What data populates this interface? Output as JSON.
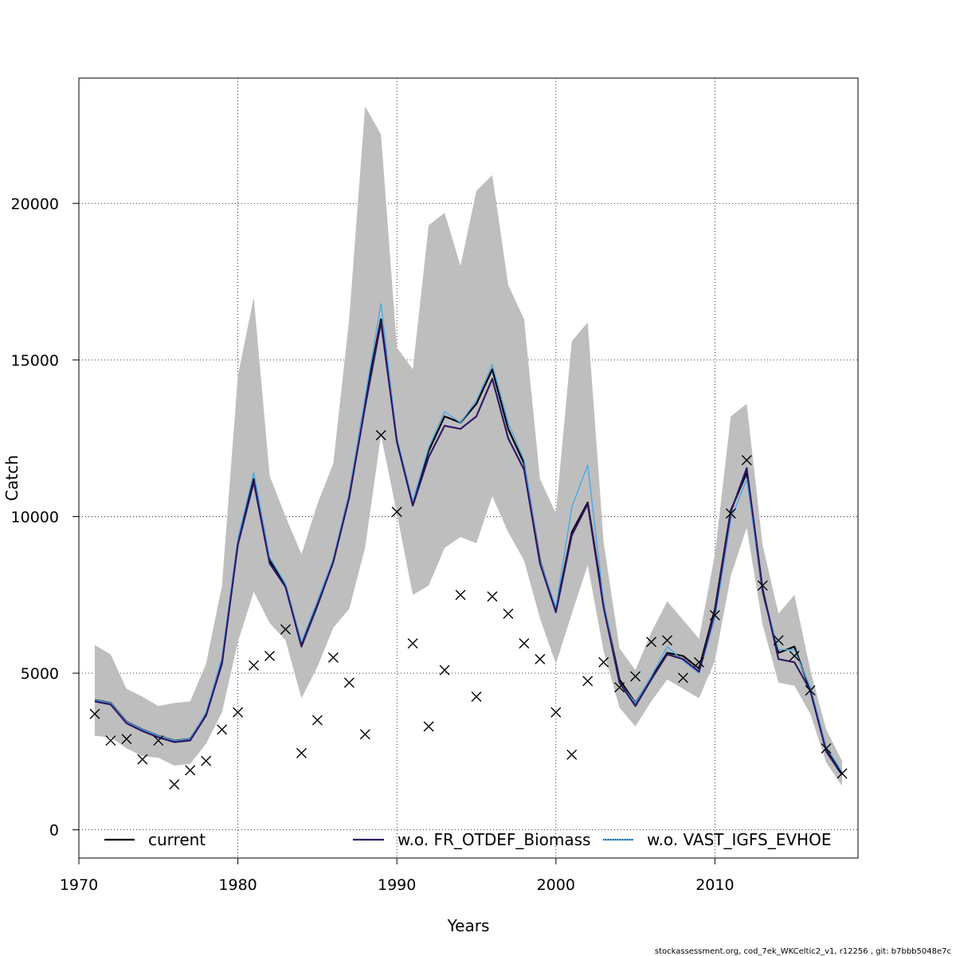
{
  "chart_data": {
    "type": "line",
    "xlabel": "Years",
    "ylabel": "Catch",
    "xlim": [
      1970,
      2019
    ],
    "ylim": [
      -900,
      24000
    ],
    "xticks": [
      1970,
      1980,
      1990,
      2000,
      2010
    ],
    "yticks": [
      0,
      5000,
      10000,
      15000,
      20000
    ],
    "grid": true,
    "legend_position": "bottom",
    "footer": "stockassessment.org, cod_7ek_WKCeltic2_v1, r12256 , git: b7bbb5048e7c",
    "x": [
      1971,
      1972,
      1973,
      1974,
      1975,
      1976,
      1977,
      1978,
      1979,
      1980,
      1981,
      1982,
      1983,
      1984,
      1985,
      1986,
      1987,
      1988,
      1989,
      1990,
      1991,
      1992,
      1993,
      1994,
      1995,
      1996,
      1997,
      1998,
      1999,
      2000,
      2001,
      2002,
      2003,
      2004,
      2005,
      2006,
      2007,
      2008,
      2009,
      2010,
      2011,
      2012,
      2013,
      2014,
      2015,
      2016,
      2017,
      2018
    ],
    "band": {
      "upper": [
        5900,
        5600,
        4500,
        4250,
        3950,
        4050,
        4100,
        5300,
        7800,
        14500,
        17000,
        11300,
        10000,
        8800,
        10400,
        11700,
        16300,
        23100,
        22200,
        15400,
        14700,
        19300,
        19700,
        18000,
        20400,
        20900,
        17400,
        16300,
        11200,
        10100,
        15600,
        16200,
        9200,
        5800,
        5100,
        6300,
        7300,
        6700,
        6100,
        8800,
        13200,
        13600,
        9100,
        6900,
        7500,
        5100,
        3200,
        2200
      ],
      "lower": [
        3000,
        2950,
        2600,
        2350,
        2300,
        2050,
        2100,
        2750,
        3750,
        6000,
        7600,
        6600,
        6050,
        4200,
        5200,
        6450,
        7050,
        9000,
        12600,
        10100,
        7500,
        7800,
        9000,
        9350,
        9150,
        10650,
        9500,
        8600,
        6750,
        5300,
        6900,
        8450,
        5700,
        3900,
        3300,
        4100,
        4800,
        4500,
        4200,
        5400,
        8100,
        9650,
        6550,
        4700,
        4600,
        3700,
        2150,
        1400
      ]
    },
    "series": [
      {
        "name": "current",
        "color": "#000000",
        "values": [
          4150,
          4050,
          3450,
          3200,
          3000,
          2850,
          2900,
          3700,
          5400,
          9200,
          11200,
          8600,
          7800,
          5900,
          7200,
          8600,
          10700,
          13700,
          16300,
          12400,
          10400,
          12100,
          13200,
          13000,
          13600,
          14700,
          12800,
          11700,
          8600,
          7000,
          9500,
          10450,
          7200,
          4800,
          4050,
          4850,
          5650,
          5550,
          5150,
          7050,
          10200,
          11400,
          7600,
          5650,
          5850,
          4450,
          2550,
          1800
        ]
      },
      {
        "name": "w.o. FR_OTDEF_Biomass",
        "color": "#3b1e78",
        "values": [
          4100,
          4000,
          3400,
          3150,
          2950,
          2800,
          2850,
          3650,
          5300,
          9100,
          11100,
          8500,
          7750,
          5850,
          7150,
          8550,
          10600,
          13500,
          16200,
          12400,
          10350,
          11900,
          12900,
          12800,
          13200,
          14400,
          12500,
          11500,
          8500,
          6950,
          9400,
          10400,
          7100,
          4700,
          3950,
          4800,
          5600,
          5450,
          5050,
          6950,
          10150,
          11550,
          7700,
          5450,
          5350,
          4450,
          2500,
          1750
        ]
      },
      {
        "name": "w.o. VAST_IGFS_EVHOE",
        "color": "#4aa8e8",
        "values": [
          4150,
          4050,
          3450,
          3200,
          3000,
          2850,
          2900,
          3750,
          5500,
          9300,
          11400,
          8700,
          7850,
          6000,
          7300,
          8650,
          10750,
          13800,
          16800,
          12500,
          10500,
          12200,
          13350,
          13000,
          13700,
          14850,
          13000,
          11800,
          8600,
          7100,
          10300,
          11650,
          7300,
          4700,
          4050,
          4900,
          5850,
          5400,
          5000,
          6750,
          9900,
          11200,
          7600,
          5750,
          5750,
          4550,
          2650,
          1850
        ]
      }
    ],
    "observations": {
      "x": [
        1971,
        1972,
        1973,
        1974,
        1975,
        1976,
        1977,
        1978,
        1979,
        1980,
        1981,
        1982,
        1983,
        1984,
        1985,
        1986,
        1987,
        1988,
        1989,
        1990,
        1991,
        1992,
        1993,
        1994,
        1995,
        1996,
        1997,
        1998,
        1999,
        2000,
        2001,
        2002,
        2003,
        2004,
        2005,
        2006,
        2007,
        2008,
        2009,
        2010,
        2011,
        2012,
        2013,
        2014,
        2015,
        2016,
        2017,
        2018
      ],
      "y": [
        3700,
        2850,
        2900,
        2250,
        2850,
        1450,
        1900,
        2200,
        3200,
        3750,
        5250,
        5550,
        6400,
        2450,
        3500,
        5500,
        4700,
        3050,
        12600,
        10150,
        5950,
        3300,
        5100,
        7500,
        4250,
        7450,
        6900,
        5950,
        5450,
        3750,
        2400,
        4750,
        5350,
        4550,
        4900,
        6000,
        6050,
        4850,
        5350,
        6850,
        10100,
        11800,
        7800,
        6050,
        5550,
        4450,
        2600,
        1800
      ]
    }
  }
}
